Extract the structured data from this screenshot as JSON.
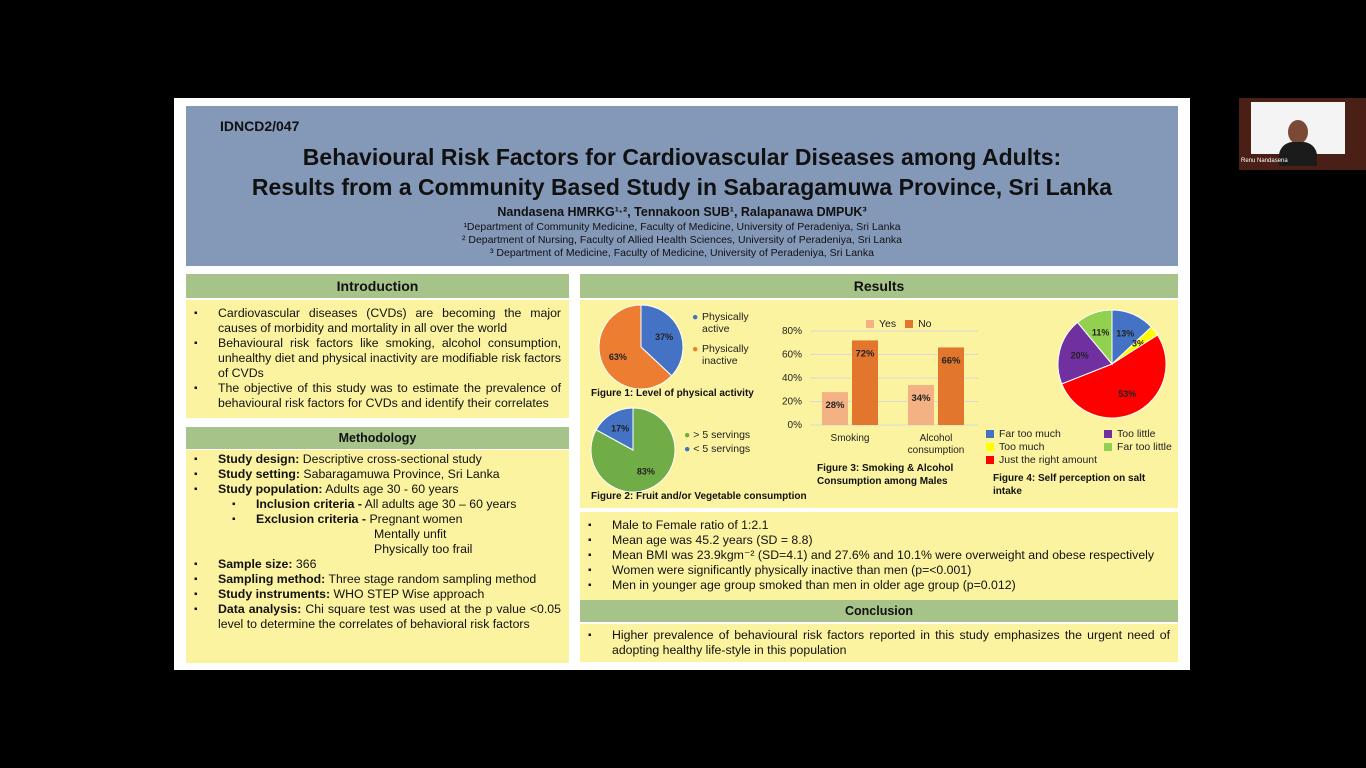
{
  "poster": {
    "code": "IDNCD2/047",
    "title_line1": "Behavioural Risk Factors for Cardiovascular Diseases among Adults:",
    "title_line2": "Results from a Community Based Study in Sabaragamuwa Province, Sri Lanka",
    "authors": "Nandasena HMRKG¹·², Tennakoon SUB¹, Ralapanawa DMPUK³",
    "affiliations": [
      "¹Department of Community Medicine, Faculty of Medicine, University of Peradeniya, Sri Lanka",
      "² Department of Nursing, Faculty of Allied Health Sciences, University of Peradeniya, Sri Lanka",
      "³ Department of Medicine, Faculty of Medicine, University of Peradeniya, Sri Lanka"
    ]
  },
  "introduction": {
    "heading": "Introduction",
    "items": [
      "Cardiovascular diseases (CVDs) are becoming the major causes of morbidity and mortality in all over the world",
      "Behavioural risk factors like smoking, alcohol consumption, unhealthy diet and physical inactivity are modifiable risk factors of CVDs",
      "The objective of this study was to estimate the prevalence of behavioural risk factors for CVDs and identify their correlates"
    ]
  },
  "methodology": {
    "heading": "Methodology",
    "design_label": "Study design:",
    "design_value": " Descriptive cross-sectional study",
    "setting_label": "Study setting:",
    "setting_value": " Sabaragamuwa Province, Sri Lanka",
    "population_label": "Study population:",
    "population_value": " Adults age 30 - 60 years",
    "inclusion_label": "Inclusion criteria -",
    "inclusion_value": " All adults age 30 – 60 years",
    "exclusion_label": "Exclusion criteria -",
    "exclusion_value": " Pregnant women",
    "exclusion_extra1": "Mentally unfit",
    "exclusion_extra2": "Physically too frail",
    "sample_label": "Sample size:",
    "sample_value": " 366",
    "sampling_label": "Sampling method:",
    "sampling_value": " Three stage random sampling method",
    "instruments_label": "Study instruments:",
    "instruments_value": " WHO STEP Wise approach",
    "analysis_label": "Data analysis:",
    "analysis_value": "  Chi square test was used at the p value <0.05 level to determine the correlates of behavioral risk factors"
  },
  "results": {
    "heading": "Results",
    "findings": [
      "Male to Female ratio of 1:2.1",
      "Mean age was 45.2 years (SD = 8.8)",
      "Mean BMI was 23.9kgm⁻² (SD=4.1) and 27.6% and 10.1% were overweight and obese respectively",
      "Women were significantly physically inactive than men (p=<0.001)",
      "Men in younger age group smoked than men in older age group (p=0.012)"
    ]
  },
  "conclusion": {
    "heading": "Conclusion",
    "items": [
      "Higher prevalence of behavioural risk factors reported in this study emphasizes the urgent need of adopting healthy life-style in this population"
    ]
  },
  "colors": {
    "header": "#8498b8",
    "section_head": "#a6c48a",
    "box": "#fbf3a0",
    "blue": "#4472c4",
    "orange": "#ed7d31",
    "green": "#70ad47",
    "light_orange": "#f4b183",
    "dark_orange": "#e2762d",
    "red": "#ff0000",
    "purple": "#7030a0",
    "yellow": "#ffff00",
    "lime": "#92d050"
  },
  "chart_data": [
    {
      "type": "pie",
      "title": "Figure 1: Level of physical activity",
      "labels": [
        "Physically active",
        "Physically inactive"
      ],
      "values": [
        37,
        63
      ],
      "value_labels": [
        "37%",
        "63%"
      ]
    },
    {
      "type": "pie",
      "title": "Figure 2: Fruit and/or Vegetable consumption",
      "labels": [
        "> 5 servings",
        "< 5 servings"
      ],
      "values": [
        83,
        17
      ],
      "value_labels": [
        "83%",
        "17%"
      ]
    },
    {
      "type": "bar",
      "title": "Figure 3: Smoking & Alcohol Consumption among Males",
      "categories": [
        "Smoking",
        "Alcohol consumption"
      ],
      "series": [
        {
          "name": "Yes",
          "values": [
            28,
            34
          ]
        },
        {
          "name": "No",
          "values": [
            72,
            66
          ]
        }
      ],
      "value_labels": [
        [
          "28%",
          "34%"
        ],
        [
          "72%",
          "66%"
        ]
      ],
      "ylim": [
        0,
        80
      ],
      "yticks": [
        "0%",
        "20%",
        "40%",
        "60%",
        "80%"
      ],
      "grid": true,
      "legend": "top"
    },
    {
      "type": "pie",
      "title": "Figure 4: Self perception on salt intake",
      "labels": [
        "Far too much",
        "Too much",
        "Just the right amount",
        "Too little",
        "Far too little"
      ],
      "values": [
        13,
        3,
        53,
        20,
        11
      ],
      "value_labels": [
        "13%",
        "3%",
        "53%",
        "20%",
        "11%"
      ]
    }
  ],
  "webcam": {
    "name": "Renu Nandasena"
  }
}
